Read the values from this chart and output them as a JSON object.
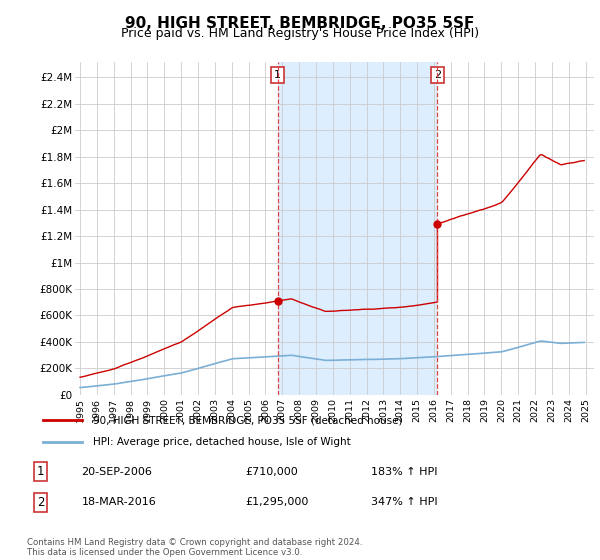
{
  "title": "90, HIGH STREET, BEMBRIDGE, PO35 5SF",
  "subtitle": "Price paid vs. HM Land Registry's House Price Index (HPI)",
  "title_fontsize": 11,
  "subtitle_fontsize": 9,
  "ylabel_ticks": [
    "£0",
    "£200K",
    "£400K",
    "£600K",
    "£800K",
    "£1M",
    "£1.2M",
    "£1.4M",
    "£1.6M",
    "£1.8M",
    "£2M",
    "£2.2M",
    "£2.4M"
  ],
  "ytick_values": [
    0,
    200000,
    400000,
    600000,
    800000,
    1000000,
    1200000,
    1400000,
    1600000,
    1800000,
    2000000,
    2200000,
    2400000
  ],
  "ylim": [
    0,
    2520000
  ],
  "xlim_start": 1994.7,
  "xlim_end": 2025.5,
  "hpi_color": "#7bafd4",
  "price_color": "#cc0000",
  "vline_color": "#dd4444",
  "shade_color": "#ddeeff",
  "background_color": "#ffffff",
  "plot_bg_color": "#ffffff",
  "grid_color": "#cccccc",
  "sale1_x": 2006.72,
  "sale1_y": 710000,
  "sale1_label": "1",
  "sale1_date": "20-SEP-2006",
  "sale1_price": "£710,000",
  "sale1_hpi": "183% ↑ HPI",
  "sale2_x": 2016.21,
  "sale2_y": 1295000,
  "sale2_label": "2",
  "sale2_date": "18-MAR-2016",
  "sale2_price": "£1,295,000",
  "sale2_hpi": "347% ↑ HPI",
  "legend_label1": "90, HIGH STREET, BEMBRIDGE, PO35 5SF (detached house)",
  "legend_label2": "HPI: Average price, detached house, Isle of Wight",
  "footer": "Contains HM Land Registry data © Crown copyright and database right 2024.\nThis data is licensed under the Open Government Licence v3.0.",
  "xticks": [
    1995,
    1996,
    1997,
    1998,
    1999,
    2000,
    2001,
    2002,
    2003,
    2004,
    2005,
    2006,
    2007,
    2008,
    2009,
    2010,
    2011,
    2012,
    2013,
    2014,
    2015,
    2016,
    2017,
    2018,
    2019,
    2020,
    2021,
    2022,
    2023,
    2024,
    2025
  ]
}
